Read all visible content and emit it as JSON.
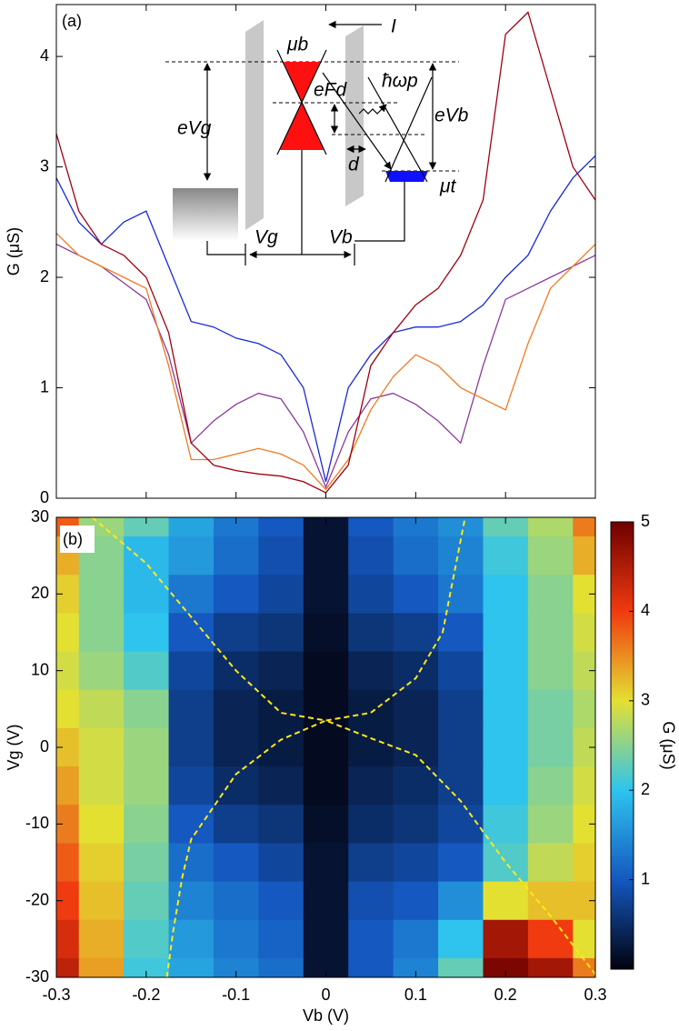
{
  "chart_data": [
    {
      "type": "line",
      "panel_label": "(a)",
      "ylabel": "G (μS)",
      "xlim": [
        -0.3,
        0.3
      ],
      "xticks": [
        -0.3,
        -0.2,
        -0.1,
        0,
        0.1,
        0.2,
        0.3
      ],
      "ylim": [
        0,
        4.47
      ],
      "yticks": [
        0,
        1,
        2,
        3,
        4
      ],
      "x": [
        -0.3,
        -0.275,
        -0.25,
        -0.225,
        -0.2,
        -0.175,
        -0.15,
        -0.125,
        -0.1,
        -0.075,
        -0.05,
        -0.025,
        0,
        0.025,
        0.05,
        0.075,
        0.1,
        0.125,
        0.15,
        0.175,
        0.2,
        0.225,
        0.25,
        0.275,
        0.3
      ],
      "series": [
        {
          "color": "#1a2ad8",
          "values": [
            2.9,
            2.5,
            2.3,
            2.5,
            2.6,
            2.1,
            1.6,
            1.55,
            1.45,
            1.4,
            1.3,
            1.0,
            0.15,
            1.0,
            1.3,
            1.5,
            1.55,
            1.55,
            1.6,
            1.75,
            2.0,
            2.2,
            2.6,
            2.9,
            3.1
          ]
        },
        {
          "color": "#8a3a9a",
          "values": [
            2.3,
            2.2,
            2.1,
            1.95,
            1.8,
            1.3,
            0.5,
            0.7,
            0.85,
            0.95,
            0.9,
            0.6,
            0.1,
            0.6,
            0.9,
            0.95,
            0.85,
            0.7,
            0.5,
            1.2,
            1.8,
            1.9,
            2.0,
            2.1,
            2.2
          ]
        },
        {
          "color": "#f07a20",
          "values": [
            2.4,
            2.2,
            2.1,
            2.0,
            1.9,
            1.2,
            0.35,
            0.35,
            0.4,
            0.45,
            0.4,
            0.3,
            0.08,
            0.35,
            0.8,
            1.1,
            1.3,
            1.2,
            1.0,
            0.9,
            0.8,
            1.4,
            1.9,
            2.1,
            2.3
          ]
        },
        {
          "color": "#a00010",
          "values": [
            3.3,
            2.6,
            2.3,
            2.2,
            2.0,
            1.5,
            0.5,
            0.3,
            0.25,
            0.22,
            0.2,
            0.15,
            0.05,
            0.3,
            1.2,
            1.5,
            1.75,
            1.9,
            2.2,
            2.7,
            4.2,
            4.4,
            3.7,
            3.0,
            2.7
          ]
        }
      ],
      "annotations": [
        "I",
        "μb",
        "eFd",
        "ħωp",
        "eVg",
        "eVb",
        "d",
        "μt",
        "Vg",
        "Vb"
      ]
    },
    {
      "type": "heatmap",
      "panel_label": "(b)",
      "xlabel": "Vb (V)",
      "ylabel": "Vg (V)",
      "xlim": [
        -0.3,
        0.3
      ],
      "xticks": [
        -0.3,
        -0.2,
        -0.1,
        0,
        0.1,
        0.2,
        0.3
      ],
      "ylim": [
        -30,
        30
      ],
      "yticks": [
        -30,
        -20,
        -10,
        0,
        10,
        20,
        30
      ],
      "x": [
        -0.3,
        -0.25,
        -0.2,
        -0.15,
        -0.1,
        -0.05,
        0,
        0.05,
        0.1,
        0.15,
        0.2,
        0.25,
        0.3
      ],
      "y": [
        30,
        25,
        20,
        15,
        10,
        5,
        0,
        -5,
        -10,
        -15,
        -20,
        -25,
        -30
      ],
      "z": [
        [
          3.8,
          2.6,
          2.3,
          1.7,
          1.3,
          1.0,
          0.2,
          1.0,
          1.3,
          1.5,
          2.3,
          2.7,
          3.6
        ],
        [
          3.3,
          2.5,
          1.9,
          1.6,
          1.2,
          0.9,
          0.2,
          0.9,
          1.2,
          1.4,
          2.1,
          2.6,
          3.3
        ],
        [
          3.1,
          2.5,
          1.9,
          1.3,
          1.0,
          0.8,
          0.2,
          0.8,
          1.0,
          1.3,
          2.0,
          2.5,
          3.0
        ],
        [
          3.0,
          2.5,
          2.0,
          1.0,
          0.7,
          0.6,
          0.15,
          0.6,
          0.7,
          1.0,
          2.0,
          2.5,
          2.9
        ],
        [
          2.9,
          2.6,
          2.2,
          0.8,
          0.5,
          0.4,
          0.1,
          0.4,
          0.5,
          0.8,
          2.0,
          2.5,
          2.8
        ],
        [
          3.0,
          2.8,
          2.5,
          0.7,
          0.4,
          0.3,
          0.1,
          0.3,
          0.4,
          0.7,
          2.0,
          2.4,
          2.7
        ],
        [
          3.2,
          2.9,
          2.6,
          0.7,
          0.4,
          0.3,
          0.1,
          0.3,
          0.4,
          0.7,
          2.0,
          2.4,
          2.8
        ],
        [
          3.4,
          2.9,
          2.6,
          0.8,
          0.5,
          0.4,
          0.1,
          0.4,
          0.5,
          0.7,
          2.0,
          2.5,
          2.9
        ],
        [
          3.6,
          3.0,
          2.5,
          1.0,
          0.7,
          0.6,
          0.15,
          0.5,
          0.6,
          0.8,
          2.1,
          2.6,
          3.0
        ],
        [
          3.8,
          3.1,
          2.4,
          1.2,
          1.0,
          0.8,
          0.2,
          0.7,
          0.8,
          1.0,
          2.2,
          2.8,
          3.1
        ],
        [
          4.0,
          3.2,
          2.3,
          1.4,
          1.2,
          1.0,
          0.2,
          0.9,
          1.0,
          1.5,
          3.0,
          3.2,
          3.2
        ],
        [
          4.2,
          3.3,
          2.2,
          1.6,
          1.3,
          1.1,
          0.2,
          1.0,
          1.3,
          2.0,
          4.6,
          4.0,
          3.0
        ],
        [
          4.4,
          3.4,
          2.1,
          1.7,
          1.4,
          1.2,
          0.2,
          1.0,
          1.4,
          2.3,
          4.9,
          4.6,
          3.6
        ]
      ],
      "colormap": [
        "#02020e",
        "#1458c0",
        "#2ec4ee",
        "#e4e032",
        "#f03a10",
        "#6e0000"
      ],
      "colorbar": {
        "label": "G (μS)",
        "lim": [
          0,
          5
        ],
        "ticks": [
          1,
          2,
          3,
          4,
          5
        ]
      },
      "curves": [
        {
          "color": "#ffe81a",
          "x": [
            -0.26,
            -0.2,
            -0.15,
            -0.1,
            -0.05,
            0,
            0.05,
            0.1,
            0.13,
            0.155
          ],
          "y": [
            30,
            24,
            17,
            10,
            4.5,
            3.5,
            4.5,
            9,
            15,
            30
          ]
        },
        {
          "color": "#ffe81a",
          "x": [
            -0.177,
            -0.17,
            -0.16,
            -0.15,
            -0.1,
            -0.05,
            0,
            0.05,
            0.1,
            0.15,
            0.2,
            0.25,
            0.3
          ],
          "y": [
            -30,
            -24,
            -17,
            -12,
            -3.5,
            1,
            3.5,
            1.2,
            -1,
            -7,
            -15,
            -22,
            -29.6
          ]
        }
      ]
    }
  ]
}
